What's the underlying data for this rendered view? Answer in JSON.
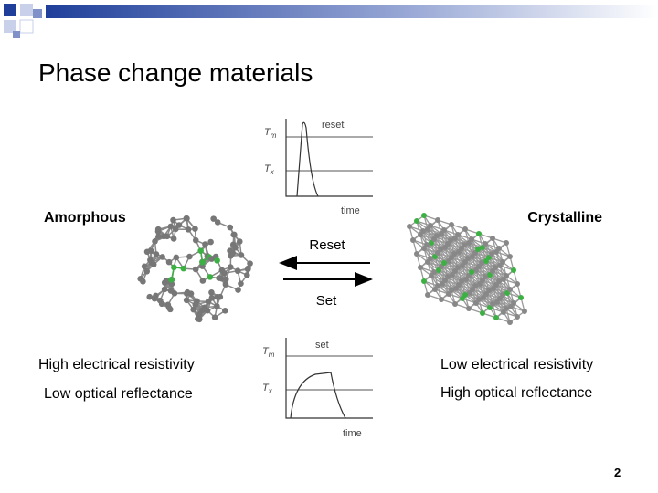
{
  "title": "Phase change materials",
  "left": {
    "label": "Amorphous",
    "line1": "High electrical resistivity",
    "line2": "Low optical reflectance"
  },
  "right": {
    "label": "Crystalline",
    "line1": "Low electrical resistivity",
    "line2": "High optical reflectance"
  },
  "arrows": {
    "top": "Reset",
    "bottom": "Set"
  },
  "reset_graph": {
    "label": "reset",
    "x_label": "time",
    "tm": {
      "base": "T",
      "sub": "m"
    },
    "tx": {
      "base": "T",
      "sub": "x"
    }
  },
  "set_graph": {
    "label": "set",
    "x_label": "time",
    "tm": {
      "base": "T",
      "sub": "m"
    },
    "tx": {
      "base": "T",
      "sub": "x"
    }
  },
  "page_number": "2"
}
